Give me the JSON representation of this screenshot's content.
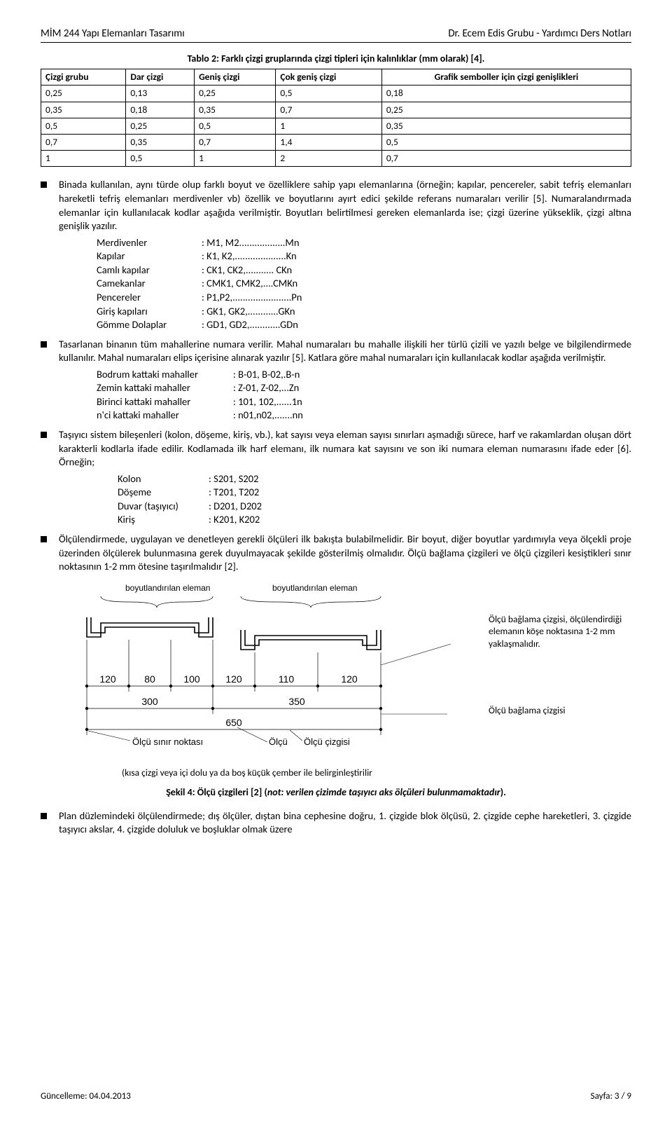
{
  "header": {
    "left": "MİM 244 Yapı Elemanları Tasarımı",
    "right": "Dr. Ecem Edis Grubu - Yardımcı Ders Notları"
  },
  "table2": {
    "caption": "Tablo 2: Farklı çizgi gruplarında çizgi tipleri için kalınlıklar (mm olarak) [4].",
    "columns": [
      "Çizgi grubu",
      "Dar çizgi",
      "Geniş çizgi",
      "Çok geniş çizgi",
      "Grafik semboller için çizgi genişlikleri"
    ],
    "rows": [
      [
        "0,25",
        "0,13",
        "0,25",
        "0,5",
        "0,18"
      ],
      [
        "0,35",
        "0,18",
        "0,35",
        "0,7",
        "0,25"
      ],
      [
        "0,5",
        "0,25",
        "0,5",
        "1",
        "0,35"
      ],
      [
        "0,7",
        "0,35",
        "0,7",
        "1,4",
        "0,5"
      ],
      [
        "1",
        "0,5",
        "1",
        "2",
        "0,7"
      ]
    ]
  },
  "bullets": {
    "b1": "Binada kullanılan, aynı türde olup farklı boyut ve özelliklere sahip yapı elemanlarına (örneğin; kapılar, pencereler, sabit tefriş elemanları hareketli tefriş elemanları merdivenler vb) özellik ve boyutlarını ayırt edici şekilde referans numaraları verilir [5]. Numaralandırmada elemanlar için kullanılacak kodlar aşağıda verilmiştir. Boyutları belirtilmesi gereken elemanlarda ise; çizgi üzerine yükseklik, çizgi altına genişlik yazılır.",
    "list1": [
      {
        "label": "Merdivenler",
        "value": ": M1, M2..................Mn"
      },
      {
        "label": "Kapılar",
        "value": ": K1, K2,....................Kn"
      },
      {
        "label": "Camlı kapılar",
        "value": ": CK1, CK2,........... CKn"
      },
      {
        "label": "Camekanlar",
        "value": ": CMK1, CMK2,....CMKn"
      },
      {
        "label": "Pencereler",
        "value": ": P1,P2,.......................Pn"
      },
      {
        "label": "Giriş kapıları",
        "value": ": GK1, GK2,............GKn"
      },
      {
        "label": "Gömme Dolaplar",
        "value": ": GD1, GD2,............GDn"
      }
    ],
    "b2": "Tasarlanan binanın tüm mahallerine numara verilir. Mahal numaraları bu mahalle ilişkili her türlü çizili ve yazılı belge ve bilgilendirmede kullanılır. Mahal numaraları elips içerisine alınarak yazılır [5]. Katlara göre mahal numaraları için kullanılacak kodlar aşağıda verilmiştir.",
    "list2": [
      {
        "label": "Bodrum kattaki mahaller",
        "value": ": B-01, B-02,.B-n"
      },
      {
        "label": "Zemin kattaki mahaller",
        "value": ": Z-01, Z-02,...Zn"
      },
      {
        "label": "Birinci kattaki mahaller",
        "value": ": 101, 102,......1n"
      },
      {
        "label": "n'ci kattaki mahaller",
        "value": ": n01,n02,.......nn"
      }
    ],
    "b3": "Taşıyıcı sistem bileşenleri (kolon, döşeme, kiriş, vb.), kat sayısı veya eleman sayısı sınırları aşmadığı sürece, harf ve rakamlardan oluşan dört karakterli kodlarla ifade edilir. Kodlamada ilk harf elemanı, ilk numara kat sayısını ve son iki numara eleman numarasını ifade eder [6]. Örneğin;",
    "list3": [
      {
        "label": "Kolon",
        "value": ": S201, S202"
      },
      {
        "label": "Döşeme",
        "value": ": T201, T202"
      },
      {
        "label": "Duvar (taşıyıcı)",
        "value": ": D201, D202"
      },
      {
        "label": "Kiriş",
        "value": ": K201, K202"
      }
    ],
    "b4": "Ölçülendirmede, uygulayan ve denetleyen gerekli ölçüleri ilk bakışta bulabilmelidir. Bir boyut, diğer boyutlar yardımıyla veya ölçekli proje üzerinden ölçülerek bulunmasına gerek duyulmayacak şekilde gösterilmiş olmalıdır. Ölçü bağlama çizgileri ve ölçü çizgileri kesiştikleri sınır noktasının 1-2 mm ötesine taşırılmalıdır [2].",
    "b5": "Plan düzlemindeki ölçülendirmede; dış ölçüler, dıştan bina cephesine doğru, 1. çizgide blok ölçüsü, 2. çizgide cephe hareketleri, 3. çizgide taşıyıcı akslar, 4. çizgide doluluk ve boşluklar olmak üzere"
  },
  "figure": {
    "top_label_left": "boyutlandırılan eleman",
    "top_label_right": "boyutlandırılan eleman",
    "dims_top": [
      "120",
      "80",
      "100",
      "120",
      "110",
      "120"
    ],
    "dims_mid": [
      "300",
      "350"
    ],
    "dims_bot": [
      "650"
    ],
    "right_note1": "Ölçü bağlama çizgisi, ölçülendirdiği elemanın köşe noktasına 1-2 mm yaklaşmalıdır.",
    "right_note2": "Ölçü bağlama çizgisi",
    "olcu": "Ölçü",
    "sinir": "Ölçü sınır noktası",
    "cizgi": "Ölçü çizgisi",
    "under": "(kısa çizgi veya içi dolu ya da boş küçük çember ile belirginleştirilir",
    "caption_main": "Şekil 4: Ölçü çizgileri [2] (",
    "caption_ital": "not: verilen çizimde taşıyıcı aks ölçüleri bulunmamaktadır",
    "caption_end": ")."
  },
  "footer": {
    "left": "Güncelleme: 04.04.2013",
    "right": "Sayfa:  3 / 9"
  },
  "colors": {
    "text": "#000000",
    "border": "#000000",
    "bg": "#ffffff",
    "fig_stroke": "#000000",
    "fig_gray": "#555555"
  }
}
